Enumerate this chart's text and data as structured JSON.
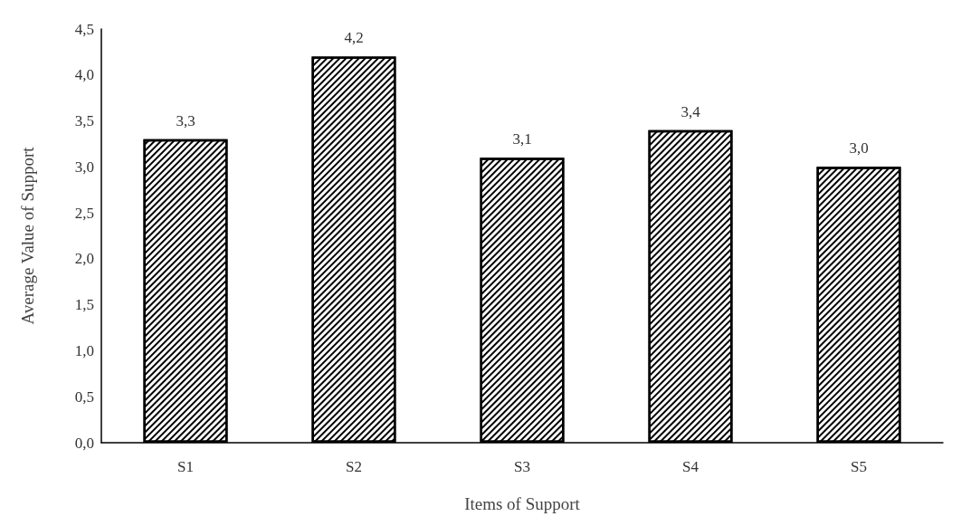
{
  "chart_data": {
    "type": "bar",
    "xlabel": "Items of Support",
    "ylabel": "Average Value of Support",
    "categories": [
      "S1",
      "S2",
      "S3",
      "S4",
      "S5"
    ],
    "values": [
      3.3,
      4.2,
      3.1,
      3.4,
      3.0
    ],
    "value_labels": [
      "3,3",
      "4,2",
      "3,1",
      "3,4",
      "3,0"
    ],
    "color": "#000000",
    "ylim": [
      0,
      4.5
    ],
    "yticks": [
      {
        "value": 0,
        "label": "0,0"
      },
      {
        "value": 0.5,
        "label": "0,5"
      },
      {
        "value": 1,
        "label": "1,0"
      },
      {
        "value": 1.5,
        "label": "1,5"
      },
      {
        "value": 2,
        "label": "2,0"
      },
      {
        "value": 2.5,
        "label": "2,5"
      },
      {
        "value": 3,
        "label": "3,0"
      },
      {
        "value": 3.5,
        "label": "3,5"
      },
      {
        "value": 4,
        "label": "4,0"
      },
      {
        "value": 4.5,
        "label": "4,5"
      }
    ],
    "grid": false
  }
}
